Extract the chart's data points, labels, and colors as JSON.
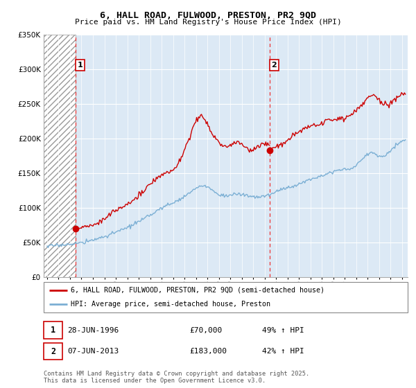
{
  "title": "6, HALL ROAD, FULWOOD, PRESTON, PR2 9QD",
  "subtitle": "Price paid vs. HM Land Registry's House Price Index (HPI)",
  "ylim": [
    0,
    350000
  ],
  "yticks": [
    0,
    50000,
    100000,
    150000,
    200000,
    250000,
    300000,
    350000
  ],
  "xlim_start": 1993.7,
  "xlim_end": 2025.5,
  "hatch_end": 1996.49,
  "purchase1_x": 1996.49,
  "purchase1_y": 70000,
  "purchase2_x": 2013.44,
  "purchase2_y": 183000,
  "legend_label1": "6, HALL ROAD, FULWOOD, PRESTON, PR2 9QD (semi-detached house)",
  "legend_label2": "HPI: Average price, semi-detached house, Preston",
  "copyright_text": "Contains HM Land Registry data © Crown copyright and database right 2025.\nThis data is licensed under the Open Government Licence v3.0.",
  "red_color": "#cc0000",
  "blue_color": "#7bafd4",
  "bg_color": "#dce9f5",
  "dashed_color": "#ee3333"
}
